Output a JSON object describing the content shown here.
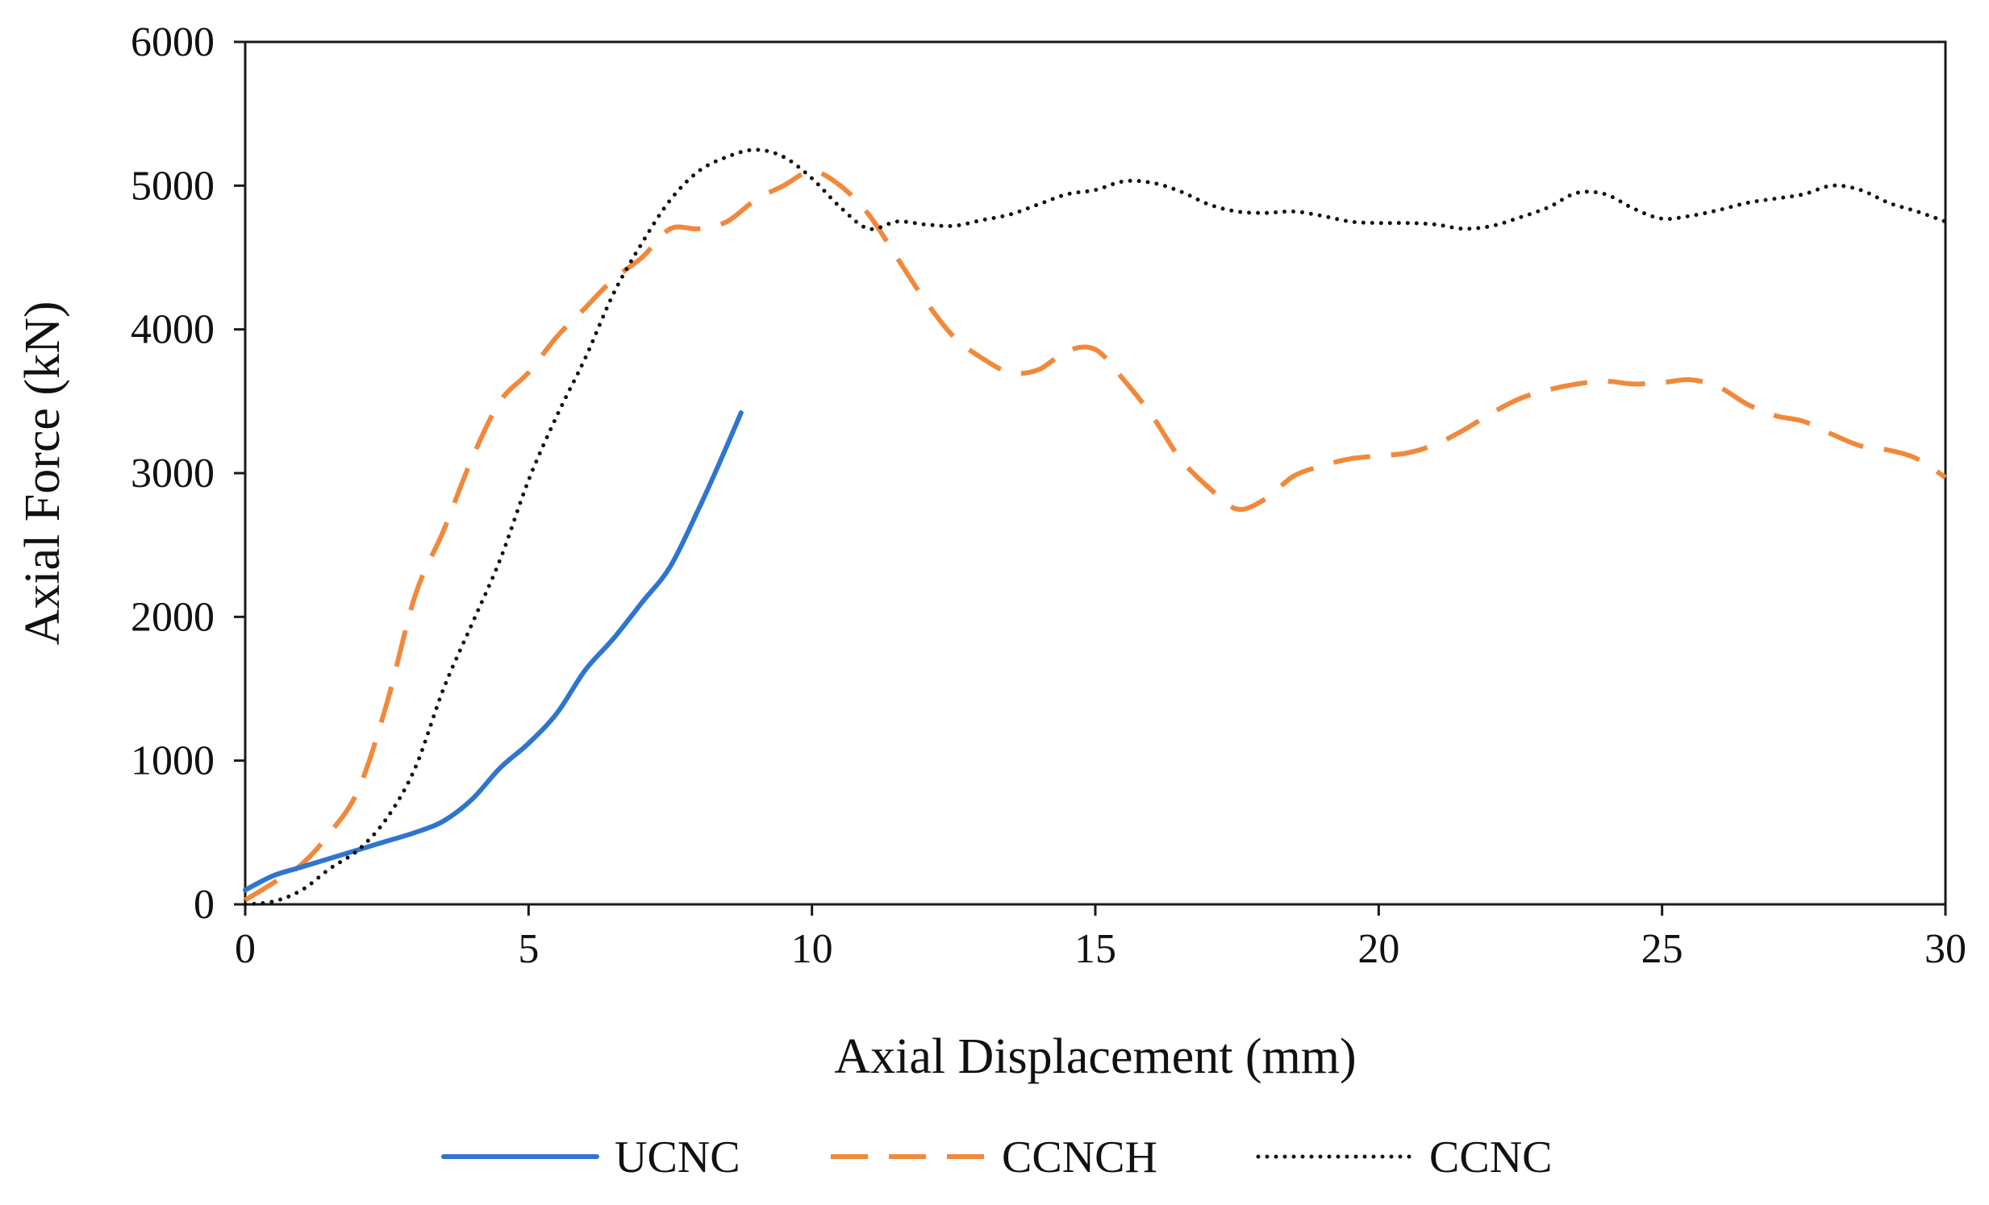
{
  "chart_data": {
    "type": "line",
    "title": "",
    "xlabel": "Axial Displacement (mm)",
    "ylabel": "Axial Force (kN)",
    "xlim": [
      0,
      30
    ],
    "ylim": [
      0,
      6000
    ],
    "xticks": [
      0,
      5,
      10,
      15,
      20,
      25,
      30
    ],
    "yticks": [
      0,
      1000,
      2000,
      3000,
      4000,
      5000,
      6000
    ],
    "xtick_labels": [
      "0",
      "5",
      "10",
      "15",
      "20",
      "25",
      "30"
    ],
    "ytick_labels": [
      "0",
      "1000",
      "2000",
      "3000",
      "4000",
      "5000",
      "6000"
    ],
    "grid": false,
    "legend_position": "bottom",
    "series": [
      {
        "name": "UCNC",
        "color": "#2e75d0",
        "style": "solid",
        "points": [
          [
            0,
            100
          ],
          [
            0.5,
            200
          ],
          [
            1,
            260
          ],
          [
            1.5,
            320
          ],
          [
            2,
            380
          ],
          [
            2.5,
            440
          ],
          [
            3,
            500
          ],
          [
            3.5,
            580
          ],
          [
            4,
            730
          ],
          [
            4.5,
            950
          ],
          [
            5,
            1120
          ],
          [
            5.5,
            1330
          ],
          [
            6,
            1630
          ],
          [
            6.5,
            1850
          ],
          [
            7,
            2100
          ],
          [
            7.5,
            2350
          ],
          [
            8,
            2750
          ],
          [
            8.4,
            3100
          ],
          [
            8.75,
            3420
          ]
        ]
      },
      {
        "name": "CCNCH",
        "color": "#f2883a",
        "style": "dashed",
        "points": [
          [
            0,
            30
          ],
          [
            0.5,
            150
          ],
          [
            1,
            280
          ],
          [
            1.5,
            500
          ],
          [
            2,
            800
          ],
          [
            2.5,
            1400
          ],
          [
            3,
            2150
          ],
          [
            3.5,
            2600
          ],
          [
            4,
            3100
          ],
          [
            4.5,
            3500
          ],
          [
            5,
            3700
          ],
          [
            5.5,
            3950
          ],
          [
            6,
            4150
          ],
          [
            6.5,
            4350
          ],
          [
            7,
            4500
          ],
          [
            7.5,
            4700
          ],
          [
            8,
            4700
          ],
          [
            8.5,
            4750
          ],
          [
            9,
            4900
          ],
          [
            9.5,
            5000
          ],
          [
            10,
            5100
          ],
          [
            10.5,
            5000
          ],
          [
            11,
            4800
          ],
          [
            11.5,
            4500
          ],
          [
            12,
            4200
          ],
          [
            12.5,
            3950
          ],
          [
            13,
            3800
          ],
          [
            13.5,
            3700
          ],
          [
            14,
            3720
          ],
          [
            14.5,
            3850
          ],
          [
            15,
            3860
          ],
          [
            15.5,
            3650
          ],
          [
            16,
            3400
          ],
          [
            16.5,
            3100
          ],
          [
            17,
            2900
          ],
          [
            17.5,
            2750
          ],
          [
            18,
            2820
          ],
          [
            18.5,
            2980
          ],
          [
            19,
            3050
          ],
          [
            19.5,
            3100
          ],
          [
            20,
            3120
          ],
          [
            20.5,
            3140
          ],
          [
            21,
            3200
          ],
          [
            21.5,
            3300
          ],
          [
            22,
            3420
          ],
          [
            22.5,
            3520
          ],
          [
            23,
            3580
          ],
          [
            23.5,
            3620
          ],
          [
            24,
            3640
          ],
          [
            24.5,
            3620
          ],
          [
            25,
            3630
          ],
          [
            25.5,
            3650
          ],
          [
            26,
            3600
          ],
          [
            26.5,
            3480
          ],
          [
            27,
            3400
          ],
          [
            27.5,
            3360
          ],
          [
            28,
            3270
          ],
          [
            28.5,
            3190
          ],
          [
            29,
            3160
          ],
          [
            29.5,
            3100
          ],
          [
            30,
            2970
          ]
        ]
      },
      {
        "name": "CCNC",
        "color": "#111111",
        "style": "dotted",
        "points": [
          [
            0,
            0
          ],
          [
            0.5,
            20
          ],
          [
            1,
            100
          ],
          [
            1.5,
            250
          ],
          [
            2,
            380
          ],
          [
            2.5,
            600
          ],
          [
            3,
            950
          ],
          [
            3.5,
            1500
          ],
          [
            4,
            1950
          ],
          [
            4.5,
            2400
          ],
          [
            5,
            2950
          ],
          [
            5.5,
            3400
          ],
          [
            6,
            3800
          ],
          [
            6.5,
            4250
          ],
          [
            7,
            4600
          ],
          [
            7.5,
            4900
          ],
          [
            8,
            5100
          ],
          [
            8.5,
            5200
          ],
          [
            9,
            5250
          ],
          [
            9.5,
            5200
          ],
          [
            10,
            5050
          ],
          [
            10.5,
            4850
          ],
          [
            11,
            4700
          ],
          [
            11.5,
            4750
          ],
          [
            12,
            4730
          ],
          [
            12.5,
            4720
          ],
          [
            13,
            4760
          ],
          [
            13.5,
            4800
          ],
          [
            14,
            4870
          ],
          [
            14.5,
            4940
          ],
          [
            15,
            4970
          ],
          [
            15.5,
            5030
          ],
          [
            16,
            5020
          ],
          [
            16.5,
            4960
          ],
          [
            17,
            4870
          ],
          [
            17.5,
            4820
          ],
          [
            18,
            4810
          ],
          [
            18.5,
            4820
          ],
          [
            19,
            4790
          ],
          [
            19.5,
            4750
          ],
          [
            20,
            4740
          ],
          [
            20.5,
            4740
          ],
          [
            21,
            4730
          ],
          [
            21.5,
            4700
          ],
          [
            22,
            4720
          ],
          [
            22.5,
            4780
          ],
          [
            23,
            4850
          ],
          [
            23.5,
            4950
          ],
          [
            24,
            4940
          ],
          [
            24.5,
            4840
          ],
          [
            25,
            4770
          ],
          [
            25.5,
            4790
          ],
          [
            26,
            4830
          ],
          [
            26.5,
            4880
          ],
          [
            27,
            4910
          ],
          [
            27.5,
            4940
          ],
          [
            28,
            5000
          ],
          [
            28.5,
            4970
          ],
          [
            29,
            4880
          ],
          [
            29.5,
            4820
          ],
          [
            30,
            4750
          ]
        ]
      }
    ]
  }
}
